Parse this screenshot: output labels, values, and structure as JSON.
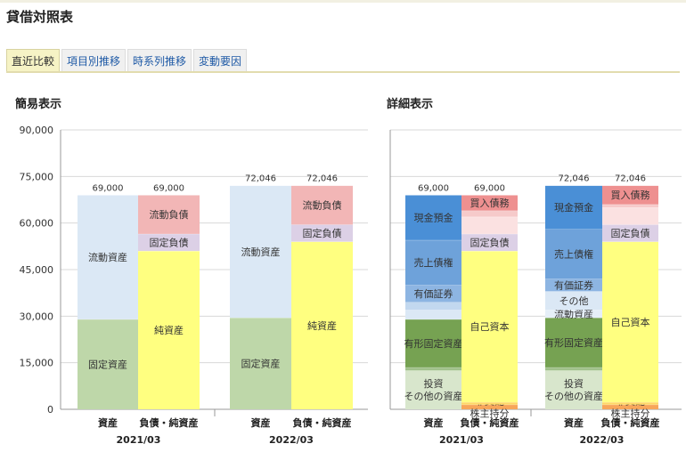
{
  "page": {
    "title": "貸借対照表"
  },
  "tabs": [
    {
      "label": "直近比較",
      "active": true
    },
    {
      "label": "項目別推移",
      "active": false
    },
    {
      "label": "時系列推移",
      "active": false
    },
    {
      "label": "変動要因",
      "active": false
    }
  ],
  "sections": {
    "simple": "簡易表示",
    "detail": "詳細表示"
  },
  "chart_data": [
    {
      "type": "bar",
      "stacked": true,
      "title": "簡易表示",
      "ylim": [
        0,
        90000
      ],
      "yticks": [
        0,
        15000,
        30000,
        45000,
        60000,
        75000,
        90000
      ],
      "ytick_labels": [
        "0",
        "15,000",
        "30,000",
        "45,000",
        "60,000",
        "75,000",
        "90,000"
      ],
      "grid": true,
      "periods": [
        {
          "period": "2021/03",
          "bars": [
            {
              "label": "資産",
              "total_label": "69,000",
              "segments": [
                {
                  "name": "固定資産",
                  "value": 29000,
                  "color": "#bed7a9"
                },
                {
                  "name": "流動資産",
                  "value": 40000,
                  "color": "#dbe8f5"
                }
              ]
            },
            {
              "label": "負債・純資産",
              "total_label": "69,000",
              "segments": [
                {
                  "name": "純資産",
                  "value": 51000,
                  "color": "#ffff80"
                },
                {
                  "name": "固定負債",
                  "value": 5500,
                  "color": "#dcd0e6"
                },
                {
                  "name": "流動負債",
                  "value": 12500,
                  "color": "#f2b6b6"
                }
              ]
            }
          ]
        },
        {
          "period": "2022/03",
          "bars": [
            {
              "label": "資産",
              "total_label": "72,046",
              "segments": [
                {
                  "name": "固定資産",
                  "value": 29500,
                  "color": "#bed7a9"
                },
                {
                  "name": "流動資産",
                  "value": 42546,
                  "color": "#dbe8f5"
                }
              ]
            },
            {
              "label": "負債・純資産",
              "total_label": "72,046",
              "segments": [
                {
                  "name": "純資産",
                  "value": 54000,
                  "color": "#ffff80"
                },
                {
                  "name": "固定負債",
                  "value": 5500,
                  "color": "#dcd0e6"
                },
                {
                  "name": "流動負債",
                  "value": 12546,
                  "color": "#f2b6b6"
                }
              ]
            }
          ]
        }
      ]
    },
    {
      "type": "bar",
      "stacked": true,
      "title": "詳細表示",
      "ylim": [
        0,
        90000
      ],
      "grid": true,
      "periods": [
        {
          "period": "2021/03",
          "bars": [
            {
              "label": "資産",
              "total_label": "69,000",
              "segments": [
                {
                  "name": "投資\nその他の資産",
                  "value": 12500,
                  "color": "#d8e6cc"
                },
                {
                  "name": "",
                  "value": 1000,
                  "color": "#9fc08a"
                },
                {
                  "name": "有形固定資産",
                  "value": 15500,
                  "color": "#76a252"
                },
                {
                  "name": "",
                  "value": 3000,
                  "color": "#dbe8f5"
                },
                {
                  "name": "",
                  "value": 2500,
                  "color": "#c2d8ef"
                },
                {
                  "name": "有価証券",
                  "value": 5500,
                  "color": "#8db5e2"
                },
                {
                  "name": "売上債権",
                  "value": 14500,
                  "color": "#6ea2da"
                },
                {
                  "name": "現金預金",
                  "value": 14500,
                  "color": "#4a8fd6"
                }
              ]
            },
            {
              "label": "負債・純資産",
              "total_label": "69,000",
              "segments": [
                {
                  "name": "非支配\n株主持分",
                  "value": 1500,
                  "color": "#f7a65a"
                },
                {
                  "name": "",
                  "value": 800,
                  "color": "#ffd766"
                },
                {
                  "name": "自己資本",
                  "value": 48700,
                  "color": "#ffff80"
                },
                {
                  "name": "固定負債",
                  "value": 5500,
                  "color": "#dcd0e6"
                },
                {
                  "name": "",
                  "value": 5500,
                  "color": "#fbe1e1"
                },
                {
                  "name": "",
                  "value": 2000,
                  "color": "#f6caca"
                },
                {
                  "name": "買入債務",
                  "value": 5000,
                  "color": "#ee9090"
                }
              ]
            }
          ]
        },
        {
          "period": "2022/03",
          "bars": [
            {
              "label": "資産",
              "total_label": "72,046",
              "segments": [
                {
                  "name": "投資\nその他の資産",
                  "value": 12500,
                  "color": "#d8e6cc"
                },
                {
                  "name": "",
                  "value": 1000,
                  "color": "#9fc08a"
                },
                {
                  "name": "有形固定資産",
                  "value": 16000,
                  "color": "#76a252"
                },
                {
                  "name": "流動資産",
                  "value": 2500,
                  "color": "#e6eff8"
                },
                {
                  "name": "その他",
                  "value": 6000,
                  "color": "#dbe8f5"
                },
                {
                  "name": "有価証券",
                  "value": 4000,
                  "color": "#8db5e2"
                },
                {
                  "name": "売上債権",
                  "value": 16000,
                  "color": "#6ea2da"
                },
                {
                  "name": "現金預金",
                  "value": 14046,
                  "color": "#4a8fd6"
                }
              ]
            },
            {
              "label": "負債・純資産",
              "total_label": "72,046",
              "segments": [
                {
                  "name": "非支配\n株主持分",
                  "value": 1500,
                  "color": "#f7a65a"
                },
                {
                  "name": "",
                  "value": 800,
                  "color": "#ffd766"
                },
                {
                  "name": "自己資本",
                  "value": 51700,
                  "color": "#ffff80"
                },
                {
                  "name": "固定負債",
                  "value": 5500,
                  "color": "#dcd0e6"
                },
                {
                  "name": "",
                  "value": 5500,
                  "color": "#fbe1e1"
                },
                {
                  "name": "",
                  "value": 1000,
                  "color": "#f6caca"
                },
                {
                  "name": "買入債務",
                  "value": 6046,
                  "color": "#ee9090"
                }
              ]
            }
          ]
        }
      ]
    }
  ]
}
